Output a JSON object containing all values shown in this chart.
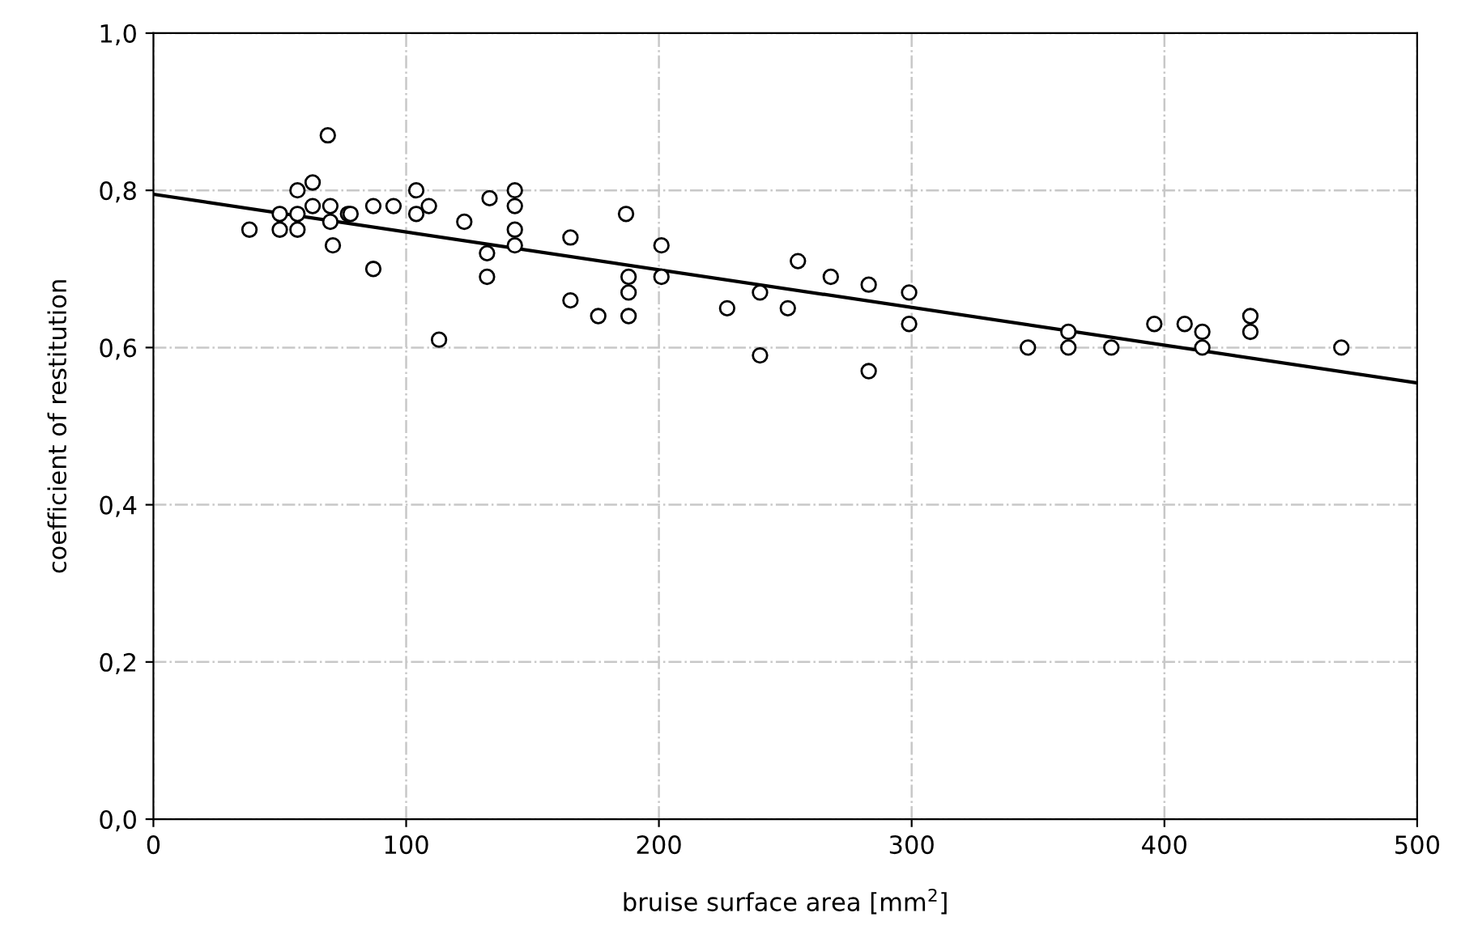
{
  "chart_data": {
    "type": "scatter",
    "xlabel": "bruise surface area [mm$^{2}$]",
    "ylabel": "coefficient of restitution",
    "xlim": [
      0,
      500
    ],
    "xticks": [
      0,
      100,
      200,
      300,
      400,
      500
    ],
    "ylim": [
      0,
      1
    ],
    "yticks": [
      {
        "value": 0,
        "label": "0,0"
      },
      {
        "value": 0.2,
        "label": "0,2"
      },
      {
        "value": 0.4,
        "label": "0,4"
      },
      {
        "value": 0.6,
        "label": "0,6"
      },
      {
        "value": 0.8,
        "label": "0,8"
      },
      {
        "value": 1,
        "label": "1,0"
      }
    ],
    "grid": true,
    "marker": "circle",
    "series": [
      {
        "type": "scatter",
        "color": "#000000",
        "x": [
          69,
          38,
          50,
          50,
          57,
          57,
          57,
          63,
          63,
          70,
          70,
          71,
          77,
          78,
          87,
          87,
          95,
          104,
          104,
          109,
          113,
          123,
          133,
          132,
          132,
          143,
          143,
          143,
          143,
          165,
          165,
          176,
          187,
          201,
          188,
          188,
          188,
          201,
          227,
          240,
          240,
          255,
          251,
          268,
          283,
          283,
          299,
          299,
          346,
          362,
          362,
          379,
          396,
          408,
          415,
          415,
          434,
          434,
          470
        ],
        "values": [
          0.87,
          0.75,
          0.75,
          0.77,
          0.8,
          0.77,
          0.75,
          0.81,
          0.78,
          0.78,
          0.76,
          0.73,
          0.77,
          0.77,
          0.78,
          0.7,
          0.78,
          0.8,
          0.77,
          0.78,
          0.61,
          0.76,
          0.79,
          0.72,
          0.69,
          0.8,
          0.78,
          0.75,
          0.73,
          0.74,
          0.66,
          0.64,
          0.77,
          0.73,
          0.69,
          0.67,
          0.64,
          0.69,
          0.65,
          0.67,
          0.59,
          0.71,
          0.65,
          0.69,
          0.68,
          0.57,
          0.67,
          0.63,
          0.6,
          0.62,
          0.6,
          0.6,
          0.63,
          0.63,
          0.62,
          0.6,
          0.64,
          0.62,
          0.6
        ]
      },
      {
        "type": "line",
        "color": "#000000",
        "line_style": "solid",
        "marker": "none",
        "x": [
          0,
          500
        ],
        "values": [
          0.795,
          0.555
        ]
      }
    ]
  }
}
